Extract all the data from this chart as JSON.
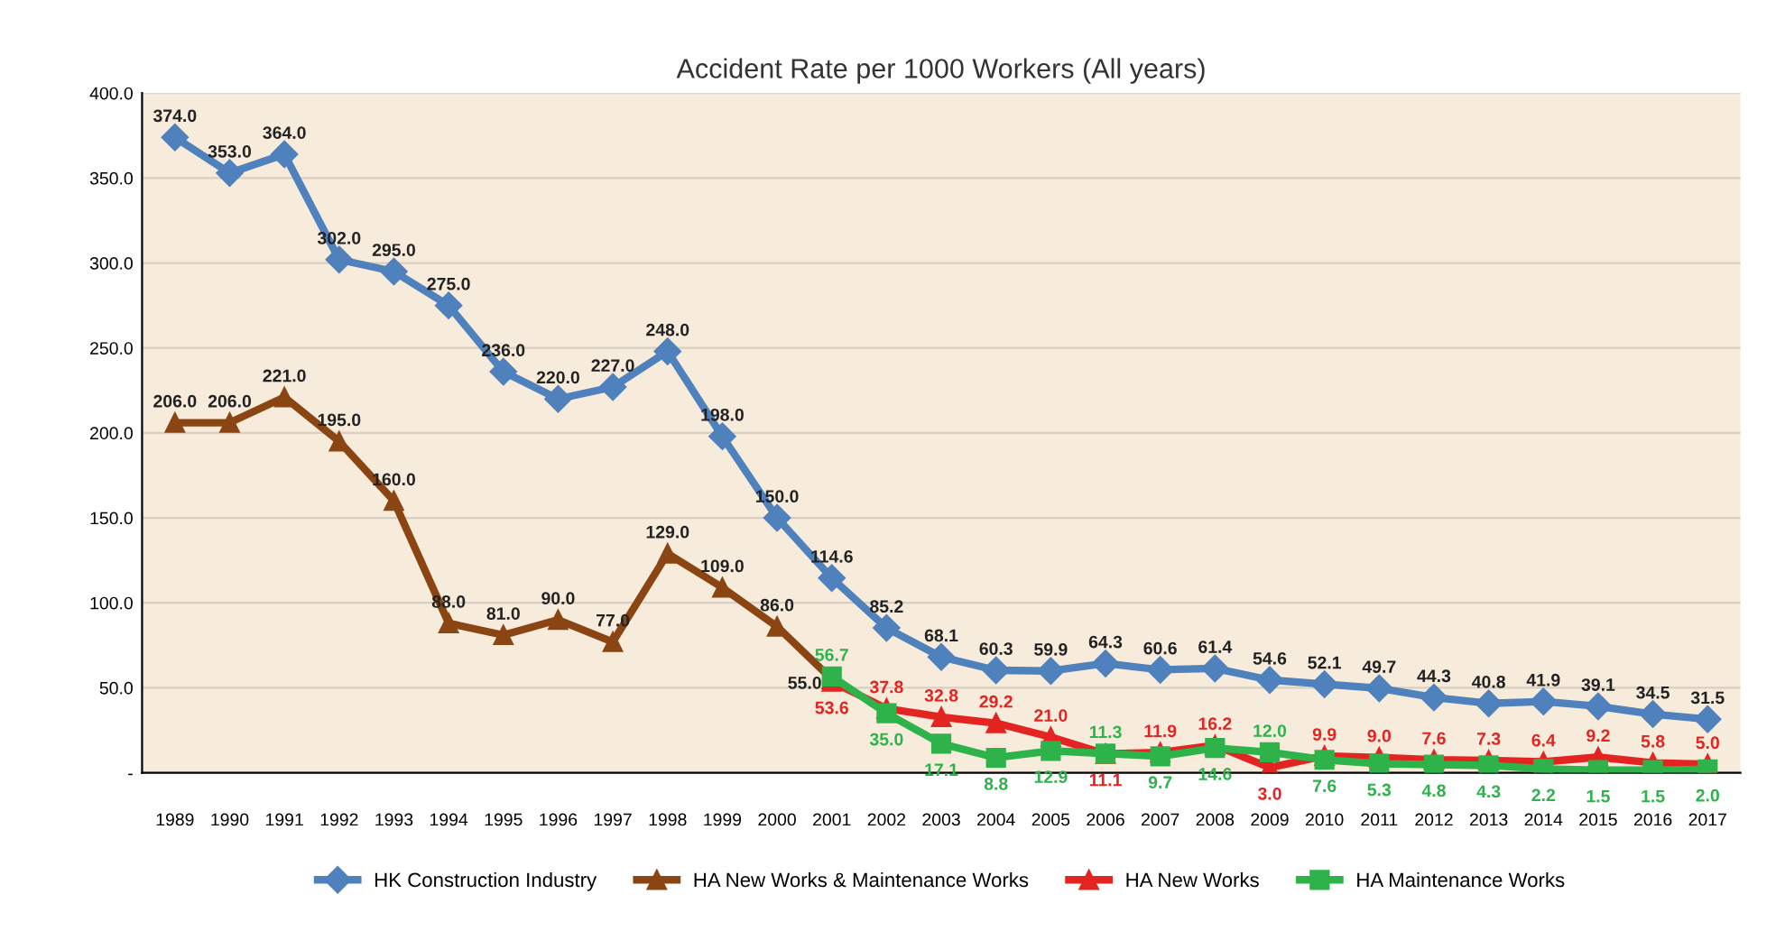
{
  "chart_data": {
    "type": "line",
    "title": "Accident Rate per 1000 Workers (All years)",
    "categories": [
      "1989",
      "1990",
      "1991",
      "1992",
      "1993",
      "1994",
      "1995",
      "1996",
      "1997",
      "1998",
      "1999",
      "2000",
      "2001",
      "2002",
      "2003",
      "2004",
      "2005",
      "2006",
      "2007",
      "2008",
      "2009",
      "2010",
      "2011",
      "2012",
      "2013",
      "2014",
      "2015",
      "2016",
      "2017"
    ],
    "series": [
      {
        "name": "HK Construction Industry",
        "color": "#4f81bd",
        "marker": "diamond",
        "values": [
          374,
          353,
          364,
          302,
          295,
          275,
          236,
          220,
          227,
          248,
          198,
          150,
          114.6,
          85.2,
          68.1,
          60.3,
          59.9,
          64.3,
          60.6,
          61.4,
          54.6,
          52.1,
          49.7,
          44.3,
          40.8,
          41.9,
          39.1,
          34.5,
          31.5
        ],
        "value_labels": [
          "374.0",
          "353.0",
          "364.0",
          "302.0",
          "295.0",
          "275.0",
          "236.0",
          "220.0",
          "227.0",
          "248.0",
          "198.0",
          "150.0",
          "114.6",
          "85.2",
          "68.1",
          "60.3",
          "59.9",
          "64.3",
          "60.6",
          "61.4",
          "54.6",
          "52.1",
          "49.7",
          "44.3",
          "40.8",
          "41.9",
          "39.1",
          "34.5",
          "31.5"
        ]
      },
      {
        "name": "HA New Works & Maintenance Works",
        "color": "#8b4513",
        "marker": "triangle",
        "values": [
          206,
          206,
          221,
          195,
          160,
          88,
          81,
          90,
          77,
          129,
          109,
          86,
          55,
          null,
          null,
          null,
          null,
          null,
          null,
          null,
          null,
          null,
          null,
          null,
          null,
          null,
          null,
          null,
          null
        ],
        "value_labels": [
          "206.0",
          "206.0",
          "221.0",
          "195.0",
          "160.0",
          "88.0",
          "81.0",
          "90.0",
          "77.0",
          "129.0",
          "109.0",
          "86.0",
          "55.0",
          null,
          null,
          null,
          null,
          null,
          null,
          null,
          null,
          null,
          null,
          null,
          null,
          null,
          null,
          null,
          null
        ]
      },
      {
        "name": "HA New Works",
        "color": "#e32420",
        "marker": "triangle",
        "values": [
          null,
          null,
          null,
          null,
          null,
          null,
          null,
          null,
          null,
          null,
          null,
          null,
          53.6,
          37.8,
          32.8,
          29.2,
          21.0,
          11.1,
          11.9,
          16.2,
          3.0,
          9.9,
          9.0,
          7.6,
          7.3,
          6.4,
          9.2,
          5.8,
          5.0
        ],
        "value_labels": [
          null,
          null,
          null,
          null,
          null,
          null,
          null,
          null,
          null,
          null,
          null,
          null,
          "53.6",
          "37.8",
          "32.8",
          "29.2",
          "21.0",
          "11.1",
          "11.9",
          "16.2",
          "3.0",
          "9.9",
          "9.0",
          "7.6",
          "7.3",
          "6.4",
          "9.2",
          "5.8",
          "5.0"
        ]
      },
      {
        "name": "HA Maintenance Works",
        "color": "#2db34a",
        "marker": "square",
        "values": [
          null,
          null,
          null,
          null,
          null,
          null,
          null,
          null,
          null,
          null,
          null,
          null,
          56.7,
          35.0,
          17.1,
          8.8,
          12.9,
          11.3,
          9.7,
          14.6,
          12.0,
          7.6,
          5.3,
          4.8,
          4.3,
          2.2,
          1.5,
          1.5,
          2.0
        ],
        "value_labels": [
          null,
          null,
          null,
          null,
          null,
          null,
          null,
          null,
          null,
          null,
          null,
          null,
          "56.7",
          "35.0",
          "17.1",
          "8.8",
          "12.9",
          "11.3",
          "9.7",
          "14.6",
          "12.0",
          "7.6",
          "5.3",
          "4.8",
          "4.3",
          "2.2",
          "1.5",
          "1.5",
          "2.0"
        ]
      }
    ],
    "ylim": [
      0,
      400
    ],
    "yticks": [
      {
        "value": 0,
        "label": "-"
      },
      {
        "value": 50,
        "label": "50.0"
      },
      {
        "value": 100,
        "label": "100.0"
      },
      {
        "value": 150,
        "label": "150.0"
      },
      {
        "value": 200,
        "label": "200.0"
      },
      {
        "value": 250,
        "label": "250.0"
      },
      {
        "value": 300,
        "label": "300.0"
      },
      {
        "value": 350,
        "label": "350.0"
      },
      {
        "value": 400,
        "label": "400.0"
      }
    ],
    "grid": "y",
    "legend": "bottom",
    "line_style": "solid"
  }
}
